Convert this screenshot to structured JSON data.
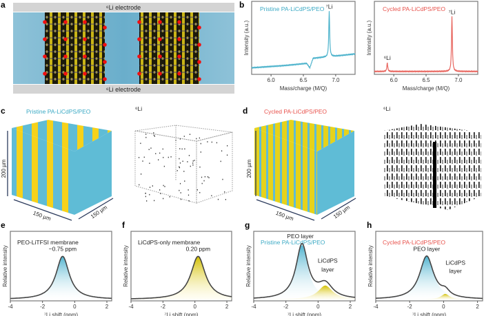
{
  "panels": {
    "a": {
      "label": "a",
      "top_electrode": "⁶Li electrode",
      "bottom_electrode": "⁶Li electrode"
    },
    "b": {
      "label": "b"
    },
    "c": {
      "label": "c",
      "title": "Pristine PA-LiCdPS/PEO",
      "map_label": "⁶Li",
      "height_label": "200 µm",
      "width_label": "150 µm",
      "depth_label": "150 µm"
    },
    "d": {
      "label": "d",
      "title": "Cycled PA-LiCdPS/PEO",
      "map_label": "⁶Li",
      "height_label": "200 µm",
      "width_label": "150 µm",
      "depth_label": "150 µm"
    },
    "e": {
      "label": "e"
    },
    "f": {
      "label": "f"
    },
    "g": {
      "label": "g"
    },
    "h": {
      "label": "h"
    }
  },
  "colors": {
    "pristine": "#3aa9c4",
    "cycled": "#e8514b",
    "peo": "#62bcd4",
    "licdps": "#d8c400",
    "curve": "#444444"
  },
  "chart_data": [
    {
      "id": "b-left",
      "type": "line",
      "title": "Pristine PA-LiCdPS/PEO",
      "title_color": "#3aa9c4",
      "line_color": "#4db3cc",
      "xlabel": "Mass/charge (M/Q)",
      "ylabel": "Intensity (a.u.)",
      "xlim": [
        5.7,
        7.3
      ],
      "xticks": [
        "6.0",
        "6.5",
        "7.0"
      ],
      "xtick_values": [
        6.0,
        6.5,
        7.0
      ],
      "baseline": [
        [
          5.7,
          0.09
        ],
        [
          6.2,
          0.12
        ],
        [
          6.55,
          0.15
        ],
        [
          6.6,
          0.09
        ],
        [
          6.65,
          0.22
        ],
        [
          7.0,
          0.25
        ],
        [
          7.3,
          0.28
        ]
      ],
      "peaks": [
        {
          "x": 6.9,
          "height": 0.62,
          "label": "⁷Li"
        }
      ]
    },
    {
      "id": "b-right",
      "type": "line",
      "title": "Cycled PA-LiCdPS/PEO",
      "title_color": "#e8514b",
      "line_color": "#e8665f",
      "xlabel": "Mass/charge (M/Q)",
      "ylabel": "Intensity (a.u.)",
      "xlim": [
        5.7,
        7.3
      ],
      "xticks": [
        "6.0",
        "6.5",
        "7.0"
      ],
      "xtick_values": [
        6.0,
        6.5,
        7.0
      ],
      "baseline": [
        [
          5.7,
          0.04
        ],
        [
          7.3,
          0.04
        ]
      ],
      "peaks": [
        {
          "x": 5.9,
          "height": 0.12,
          "label": "⁶Li"
        },
        {
          "x": 6.9,
          "height": 0.75,
          "label": "⁷Li"
        }
      ]
    },
    {
      "id": "e",
      "type": "area",
      "title": "PEO-LiTFSI membrane",
      "title_color": "#222222",
      "xlabel": "⁷Li shift (ppm)",
      "ylabel": "Relative intensity",
      "xlim": [
        -4,
        2.3
      ],
      "xticks": [
        "-4",
        "-2",
        "0",
        "2"
      ],
      "xtick_values": [
        -4,
        -2,
        0,
        2
      ],
      "components": [
        {
          "center": -0.75,
          "amplitude": 0.62,
          "width": 0.5,
          "color": "#62bcd4"
        }
      ],
      "annotations": [
        {
          "text": "−0.75 ppm",
          "x": -0.75,
          "y": 0.72
        }
      ]
    },
    {
      "id": "f",
      "type": "area",
      "title": "LiCdPS-only membrane",
      "title_color": "#222222",
      "xlabel": "⁷Li shift (ppm)",
      "ylabel": "Relative intensity",
      "xlim": [
        -4,
        2.3
      ],
      "xticks": [
        "-4",
        "-2",
        "0",
        "2"
      ],
      "xtick_values": [
        -4,
        -2,
        0,
        2
      ],
      "components": [
        {
          "center": 0.2,
          "amplitude": 0.62,
          "width": 0.55,
          "color": "#d8c400"
        }
      ],
      "annotations": [
        {
          "text": "0.20 ppm",
          "x": 0.2,
          "y": 0.72
        }
      ]
    },
    {
      "id": "g",
      "type": "area",
      "title": "Pristine PA-LiCdPS/PEO",
      "title_color": "#3aa9c4",
      "xlabel": "⁷Li shift (ppm)",
      "ylabel": "Relative intensity",
      "xlim": [
        -4,
        2.3
      ],
      "xticks": [
        "-4",
        "-2",
        "0",
        "2"
      ],
      "xtick_values": [
        -4,
        -2,
        0,
        2
      ],
      "components": [
        {
          "center": -1.0,
          "amplitude": 0.78,
          "width": 0.45,
          "color": "#62bcd4"
        },
        {
          "center": 0.45,
          "amplitude": 0.2,
          "width": 0.55,
          "color": "#d8c400"
        }
      ],
      "annotations": [
        {
          "text": "PEO layer",
          "x": -1.1,
          "y": 0.9
        },
        {
          "text": "LiCdPS",
          "x": 0.6,
          "y": 0.55
        },
        {
          "text": "layer",
          "x": 0.6,
          "y": 0.42
        }
      ]
    },
    {
      "id": "h",
      "type": "area",
      "title": "Cycled PA-LiCdPS/PEO",
      "title_color": "#e8514b",
      "xlabel": "⁷Li shift (ppm)",
      "ylabel": "Relative intensity",
      "xlim": [
        -4,
        2.3
      ],
      "xticks": [
        "-4",
        "-2",
        "0",
        "2"
      ],
      "xtick_values": [
        -4,
        -2,
        0,
        2
      ],
      "components": [
        {
          "center": -1.0,
          "amplitude": 0.62,
          "width": 0.5,
          "color": "#62bcd4"
        },
        {
          "center": 0.1,
          "amplitude": 0.08,
          "width": 0.3,
          "color": "#d8c400"
        }
      ],
      "annotations": [
        {
          "text": "PEO layer",
          "x": -1.0,
          "y": 0.72
        },
        {
          "text": "LiCdPS",
          "x": 0.7,
          "y": 0.52
        },
        {
          "text": "layer",
          "x": 0.7,
          "y": 0.4
        }
      ]
    }
  ]
}
